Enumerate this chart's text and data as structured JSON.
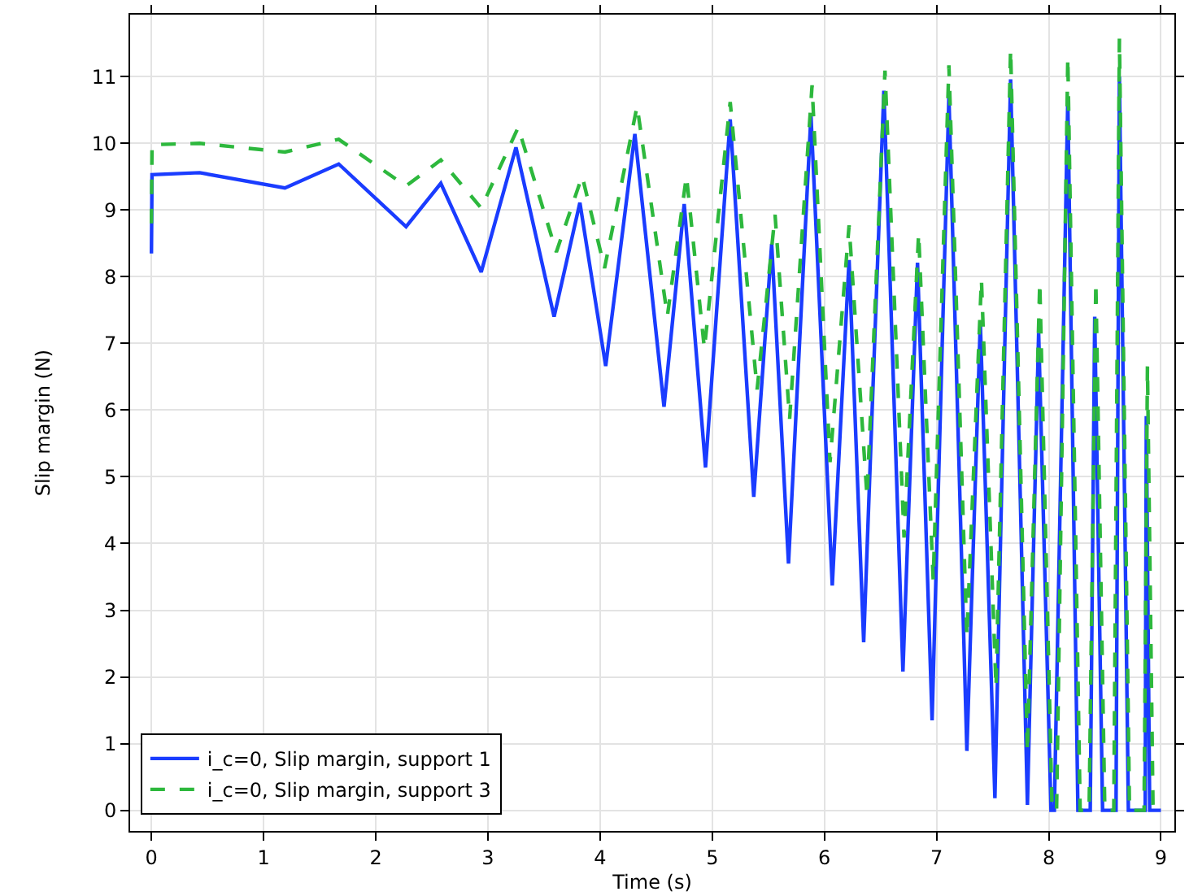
{
  "chart_data": {
    "type": "line",
    "xlabel": "Time (s)",
    "ylabel": "Slip margin (N)",
    "xlim": [
      -0.19,
      9.12
    ],
    "ylim": [
      -0.31,
      11.93
    ],
    "xticks": [
      0,
      1,
      2,
      3,
      4,
      5,
      6,
      7,
      8,
      9
    ],
    "yticks": [
      0,
      1,
      2,
      3,
      4,
      5,
      6,
      7,
      8,
      9,
      10,
      11
    ],
    "grid": true,
    "legend": "bottom left",
    "marker": "none",
    "series": [
      {
        "name": "i_c=0, Slip margin, support 1",
        "color": "#1a3cff",
        "line_style": "solid",
        "x": [
          0,
          0.005,
          0.43,
          1.19,
          1.67,
          2.27,
          2.58,
          2.94,
          3.25,
          3.59,
          3.82,
          4.05,
          4.31,
          4.57,
          4.75,
          4.94,
          5.16,
          5.37,
          5.53,
          5.68,
          5.88,
          6.07,
          6.22,
          6.35,
          6.53,
          6.7,
          6.83,
          6.96,
          7.11,
          7.27,
          7.39,
          7.52,
          7.66,
          7.81,
          7.91,
          8.02,
          8.05,
          8.17,
          8.26,
          8.37,
          8.41,
          8.48,
          8.6,
          8.63,
          8.71,
          8.86,
          8.87,
          8.9,
          9.0
        ],
        "values": [
          8.35,
          9.53,
          9.56,
          9.33,
          9.69,
          8.75,
          9.4,
          8.07,
          9.94,
          7.4,
          9.11,
          6.66,
          10.14,
          6.05,
          9.09,
          5.14,
          10.36,
          4.7,
          8.49,
          3.7,
          10.42,
          3.37,
          8.25,
          2.52,
          10.79,
          2.08,
          8.21,
          1.35,
          10.7,
          0.89,
          7.32,
          0.18,
          10.96,
          0.08,
          7.16,
          0,
          0,
          10.66,
          0,
          0,
          7.4,
          0,
          0,
          11.0,
          0,
          0,
          5.91,
          0,
          0
        ]
      },
      {
        "name": "i_c=0, Slip margin, support 3",
        "color": "#2db83d",
        "line_style": "dashed",
        "x": [
          0,
          0.005,
          0.43,
          1.19,
          1.67,
          2.27,
          2.58,
          2.94,
          3.27,
          3.61,
          3.84,
          4.04,
          4.33,
          4.6,
          4.77,
          4.93,
          5.16,
          5.4,
          5.56,
          5.69,
          5.89,
          6.05,
          6.22,
          6.38,
          6.54,
          6.71,
          6.84,
          6.97,
          7.11,
          7.27,
          7.4,
          7.53,
          7.66,
          7.81,
          7.92,
          8.03,
          8.07,
          8.17,
          8.28,
          8.36,
          8.42,
          8.5,
          8.58,
          8.63,
          8.72,
          8.85,
          8.88,
          8.93,
          9.0
        ],
        "values": [
          8.8,
          9.98,
          10.0,
          9.87,
          10.06,
          9.36,
          9.75,
          9.03,
          10.24,
          8.37,
          9.51,
          8.13,
          10.56,
          7.41,
          9.51,
          6.92,
          10.62,
          6.31,
          8.93,
          5.87,
          10.87,
          5.22,
          8.77,
          4.7,
          11.09,
          4.09,
          8.65,
          3.45,
          11.17,
          2.6,
          7.96,
          1.84,
          11.41,
          0.87,
          7.92,
          0,
          0,
          11.29,
          0,
          0,
          7.92,
          0,
          0,
          11.57,
          0,
          0,
          6.66,
          0,
          0
        ]
      }
    ]
  }
}
